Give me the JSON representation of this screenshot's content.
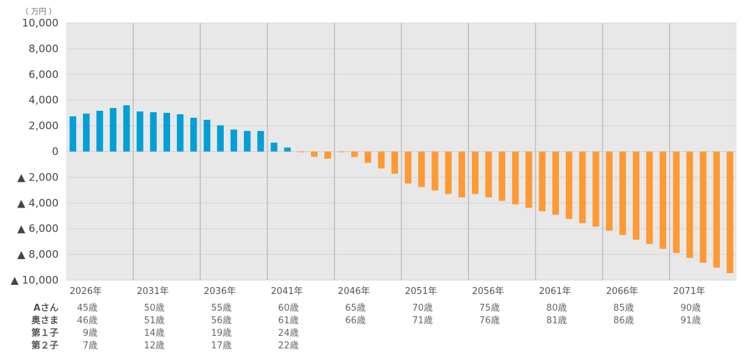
{
  "chart_data": {
    "type": "bar",
    "unit_label": "（ 万円 ）",
    "ylim": [
      -10000,
      10000
    ],
    "yticks": [
      10000,
      8000,
      6000,
      4000,
      2000,
      0,
      -2000,
      -4000,
      -6000,
      -8000,
      -10000
    ],
    "ytick_labels": [
      "10,000",
      "8,000",
      "6,000",
      "4,000",
      "2,000",
      "0",
      "▲ 2,000",
      "▲ 4,000",
      "▲ 6,000",
      "▲ 8,000",
      "▲ 10,000"
    ],
    "grid": true,
    "x_start_year": 2026,
    "year_labels": [
      "2026年",
      "2031年",
      "2036年",
      "2041年",
      "2046年",
      "2051年",
      "2056年",
      "2061年",
      "2066年",
      "2071年"
    ],
    "values": [
      2740,
      2950,
      3170,
      3390,
      3600,
      3120,
      3060,
      3010,
      2900,
      2630,
      2470,
      2040,
      1710,
      1600,
      1600,
      690,
      310,
      -50,
      -400,
      -560,
      -50,
      -430,
      -880,
      -1310,
      -1730,
      -2490,
      -2760,
      -3030,
      -3300,
      -3570,
      -3300,
      -3570,
      -3840,
      -4110,
      -4380,
      -4650,
      -4920,
      -5240,
      -5570,
      -5840,
      -6160,
      -6490,
      -6860,
      -7190,
      -7570,
      -7890,
      -8270,
      -8650,
      -9030,
      -9460
    ],
    "colors": {
      "positive": "#009fd6",
      "negative": "#ff9933",
      "plot_bg": "#e8e8e8"
    },
    "age_rows": [
      {
        "label": "Aさん",
        "ages": [
          "45歳",
          "50歳",
          "55歳",
          "60歳",
          "65歳",
          "70歳",
          "75歳",
          "80歳",
          "85歳",
          "90歳"
        ]
      },
      {
        "label": "奥さま",
        "ages": [
          "46歳",
          "51歳",
          "56歳",
          "61歳",
          "66歳",
          "71歳",
          "76歳",
          "81歳",
          "86歳",
          "91歳"
        ]
      },
      {
        "label": "第１子",
        "ages": [
          "9歳",
          "14歳",
          "19歳",
          "24歳"
        ]
      },
      {
        "label": "第２子",
        "ages": [
          "7歳",
          "12歳",
          "17歳",
          "22歳"
        ]
      }
    ]
  }
}
